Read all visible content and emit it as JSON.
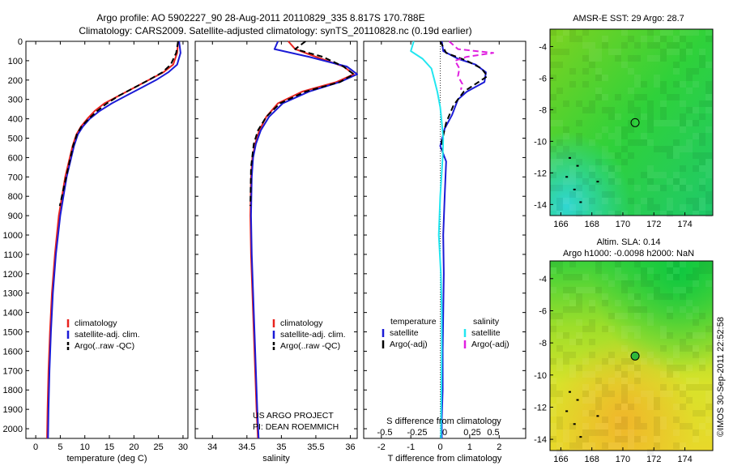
{
  "header": {
    "line1": "Argo profile: AO 5902227_90 28-Aug-2011 20110829_335 8.817S 170.788E",
    "line2": "Climatology: CARS2009. Satellite-adjusted climatology: synTS_20110828.nc (0.19d earlier)"
  },
  "side_stamp": "©IMOS 30-Sep-2011 22:52:58",
  "colors": {
    "climatology": "#e8231e",
    "satellite": "#1b1bd6",
    "argo": "#000000",
    "salinity_satellite": "#22e6f0",
    "salinity_argo": "#e020e0"
  },
  "chart_data": [
    {
      "type": "line",
      "id": "temperature",
      "xlabel": "temperature (deg C)",
      "ylabel": "",
      "xlim": [
        -2,
        31
      ],
      "ylim": [
        2050,
        0
      ],
      "xticks": [
        0,
        5,
        10,
        15,
        20,
        25,
        30
      ],
      "yticks": [
        0,
        100,
        200,
        300,
        400,
        500,
        600,
        700,
        800,
        900,
        1000,
        1100,
        1200,
        1300,
        1400,
        1500,
        1600,
        1700,
        1800,
        1900,
        2000
      ],
      "legend": {
        "placement": "lower-left",
        "entries": [
          "climatology",
          "satellite-adj. clim.",
          "Argo(..raw -QC)"
        ]
      },
      "series": [
        {
          "name": "climatology",
          "color": "#e8231e",
          "x": [
            29,
            28.8,
            28,
            26,
            23,
            20,
            17,
            14,
            12,
            10.5,
            9.2,
            8.3,
            7.5,
            6,
            4.7,
            3.9,
            3.3,
            2.9,
            2.6,
            2.4,
            2.3
          ],
          "y": [
            0,
            60,
            120,
            160,
            200,
            240,
            280,
            320,
            360,
            400,
            440,
            480,
            540,
            700,
            900,
            1100,
            1300,
            1500,
            1700,
            1900,
            2050
          ]
        },
        {
          "name": "satellite-adj. clim.",
          "color": "#1b1bd6",
          "x": [
            29.2,
            29.5,
            28.8,
            27,
            24.5,
            21.5,
            18.5,
            15.5,
            13,
            11,
            9.6,
            8.6,
            7.8,
            6.3,
            5,
            4.1,
            3.5,
            3.1,
            2.8,
            2.6,
            2.5
          ],
          "y": [
            0,
            60,
            120,
            160,
            200,
            240,
            280,
            320,
            360,
            400,
            440,
            480,
            540,
            700,
            900,
            1100,
            1300,
            1500,
            1700,
            1900,
            2050
          ]
        },
        {
          "name": "Argo(..raw -QC)",
          "color": "#000000",
          "dashed": true,
          "x": [
            29,
            28.6,
            27.5,
            25.8,
            23,
            20,
            17,
            14.5,
            12.5,
            10.8,
            9.3,
            8.4,
            7.6,
            6.2,
            4.9
          ],
          "y": [
            0,
            60,
            120,
            160,
            200,
            240,
            280,
            320,
            360,
            400,
            440,
            480,
            540,
            700,
            850
          ]
        }
      ]
    },
    {
      "type": "line",
      "id": "salinity",
      "xlabel": "salinity",
      "ylabel": "",
      "xlim": [
        33.75,
        36.1
      ],
      "ylim": [
        2050,
        0
      ],
      "xticks": [
        34,
        34.5,
        35,
        35.5,
        36
      ],
      "legend": {
        "placement": "lower-right",
        "entries": [
          "climatology",
          "satellite-adj. clim.",
          "Argo(..raw -QC)"
        ]
      },
      "annotation": [
        "US ARGO PROJECT",
        "PI: DEAN ROEMMICH"
      ],
      "series": [
        {
          "name": "climatology",
          "color": "#e8231e",
          "x": [
            35.1,
            35.2,
            35.5,
            35.9,
            36.05,
            35.8,
            35.3,
            34.95,
            34.78,
            34.68,
            34.62,
            34.58,
            34.56,
            34.55,
            34.56,
            34.58,
            34.6,
            34.62,
            34.64,
            34.66
          ],
          "y": [
            0,
            40,
            80,
            130,
            170,
            210,
            260,
            320,
            390,
            460,
            530,
            600,
            700,
            900,
            1100,
            1300,
            1500,
            1700,
            1900,
            2050
          ]
        },
        {
          "name": "satellite-adj. clim.",
          "color": "#1b1bd6",
          "x": [
            34.95,
            34.9,
            35.4,
            35.95,
            36.1,
            35.85,
            35.4,
            35.02,
            34.82,
            34.7,
            34.63,
            34.59,
            34.57,
            34.56,
            34.57,
            34.59,
            34.61,
            34.63,
            34.65,
            34.67
          ],
          "y": [
            0,
            40,
            80,
            130,
            170,
            210,
            260,
            320,
            390,
            460,
            530,
            600,
            700,
            900,
            1100,
            1300,
            1500,
            1700,
            1900,
            2050
          ]
        },
        {
          "name": "Argo(..raw -QC)",
          "color": "#000000",
          "dashed": true,
          "x": [
            35.35,
            35.2,
            35.6,
            35.9,
            36.05,
            35.85,
            35.35,
            34.98,
            34.78,
            34.66,
            34.6,
            34.56,
            34.55
          ],
          "y": [
            0,
            40,
            80,
            130,
            170,
            210,
            260,
            320,
            390,
            460,
            530,
            650,
            850
          ]
        }
      ]
    },
    {
      "type": "line",
      "id": "difference",
      "xlabel": "T difference from climatology",
      "xlabel2": "S difference from climatology",
      "xlim": [
        -2.6,
        2.9
      ],
      "ylim": [
        2050,
        0
      ],
      "xticks": [
        -2,
        -1,
        0,
        1,
        2
      ],
      "xticks2": [
        "-0.5",
        "-0.25",
        "0",
        "0.25",
        "0.5"
      ],
      "legend": {
        "placement": "lower-center",
        "temperature_title": "temperature",
        "temperature_entries": [
          "satellite",
          "Argo(-adj)"
        ],
        "salinity_title": "salinity",
        "salinity_entries": [
          "satellite",
          "Argo(-adj)"
        ]
      },
      "series": [
        {
          "name": "temperature satellite",
          "color": "#1b1bd6",
          "x": [
            0.05,
            0.1,
            0.6,
            1.2,
            1.55,
            1.5,
            0.9,
            0.6,
            0.4,
            0.15,
            0.0,
            0.2,
            0.15,
            0.1,
            0.12,
            0.1,
            0.08,
            0.08,
            0.05,
            0.05
          ],
          "y": [
            0,
            50,
            90,
            120,
            160,
            210,
            260,
            300,
            380,
            450,
            540,
            620,
            800,
            1000,
            1200,
            1400,
            1600,
            1800,
            1950,
            2050
          ]
        },
        {
          "name": "temperature Argo(-adj)",
          "color": "#000000",
          "dashed": true,
          "x": [
            0,
            0.2,
            0.9,
            1.4,
            1.6,
            1.2,
            0.8,
            0.45,
            0.2,
            0.05,
            0.1
          ],
          "y": [
            0,
            60,
            100,
            140,
            180,
            220,
            260,
            330,
            420,
            520,
            600
          ]
        },
        {
          "name": "salinity satellite",
          "color": "#22e6f0",
          "x": [
            -0.9,
            -1.0,
            -0.6,
            -0.3,
            -0.2,
            -0.1,
            0.0,
            0.05,
            0.1,
            0.08,
            0.0,
            -0.05,
            0.02,
            0.05,
            0.05,
            0.04,
            0.03,
            0.02
          ],
          "y": [
            0,
            50,
            90,
            140,
            200,
            260,
            340,
            420,
            500,
            600,
            800,
            1000,
            1200,
            1400,
            1600,
            1800,
            1950,
            2050
          ]
        },
        {
          "name": "salinity Argo(-adj)",
          "color": "#e020e0",
          "dashed": true,
          "x": [
            0.3,
            0.6,
            1.8,
            0.9,
            0.5,
            0.65,
            0.6,
            0.75,
            0.7
          ],
          "y": [
            0,
            40,
            60,
            80,
            100,
            140,
            180,
            220,
            250
          ]
        }
      ]
    },
    {
      "type": "heatmap",
      "id": "sst_map",
      "title": "AMSR-E SST: 29 Argo: 28.7",
      "xlim": [
        165.3,
        175.8
      ],
      "ylim": [
        -14.7,
        -2.9
      ],
      "xticks": [
        166,
        168,
        170,
        172,
        174
      ],
      "yticks": [
        -4,
        -6,
        -8,
        -10,
        -12,
        -14
      ],
      "argo_position": {
        "lon": 170.788,
        "lat": -8.817
      }
    },
    {
      "type": "heatmap",
      "id": "sla_map",
      "title": "Altim. SLA: 0.14",
      "subtitle": "Argo h1000: -0.0098 h2000: NaN",
      "xlim": [
        165.3,
        175.8
      ],
      "ylim": [
        -14.7,
        -2.9
      ],
      "xticks": [
        166,
        168,
        170,
        172,
        174
      ],
      "yticks": [
        -4,
        -6,
        -8,
        -10,
        -12,
        -14
      ],
      "argo_position": {
        "lon": 170.788,
        "lat": -8.817
      }
    }
  ]
}
